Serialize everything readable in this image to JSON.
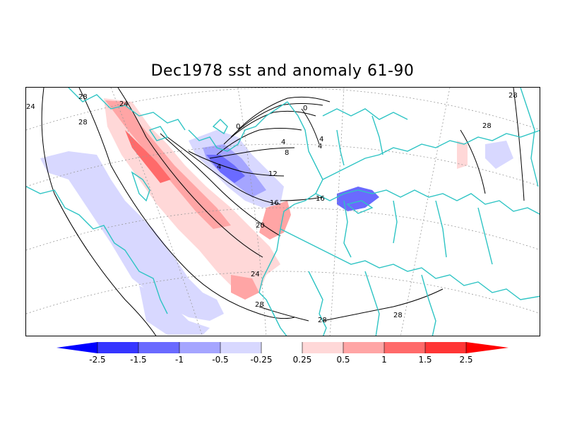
{
  "title": "Dec1978 sst and anomaly 61-90",
  "colors": {
    "coast": "#2ec4c4",
    "contour": "#000000",
    "grid": "#9a9a9a",
    "neg_strong": "#0000ff",
    "neg_1": "#3535ff",
    "neg_2": "#6a6aff",
    "neg_3": "#a5a5ff",
    "neg_4": "#d8d8ff",
    "pos_4": "#ffd8d8",
    "pos_3": "#ffa5a5",
    "pos_2": "#ff6a6a",
    "pos_1": "#ff3535",
    "pos_strong": "#ff0000"
  },
  "contour_labels": [
    "28",
    "24",
    "28",
    "24",
    "0",
    "0",
    "4",
    "4",
    "4",
    "8",
    "12",
    "16",
    "16",
    "20",
    "24",
    "28",
    "28",
    "28",
    "28",
    "28",
    "4"
  ],
  "colorbar": {
    "labels": [
      "-2.5",
      "-1.5",
      "-1",
      "-0.5",
      "-0.25",
      "0.25",
      "0.5",
      "1",
      "1.5",
      "2.5"
    ]
  }
}
